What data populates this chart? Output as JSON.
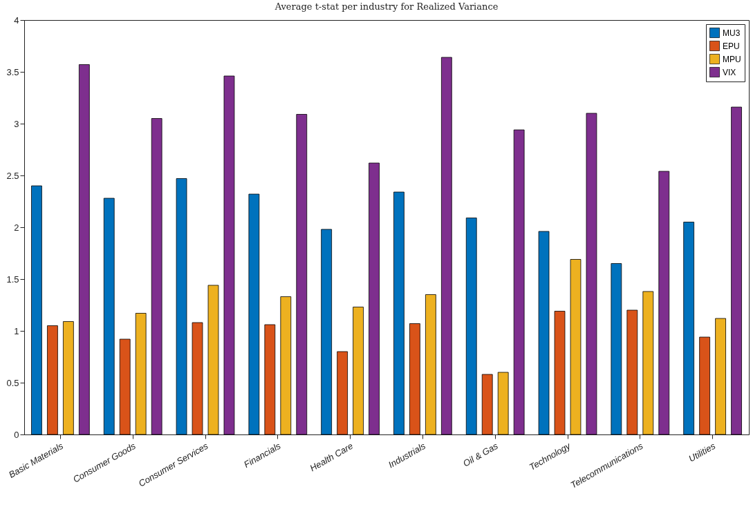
{
  "chart_data": {
    "type": "bar",
    "title": "Average t-stat per industry for Realized Variance",
    "categories": [
      "Basic Materials",
      "Consumer Goods",
      "Consumer Services",
      "Financials",
      "Health Care",
      "Industrials",
      "Oil & Gas",
      "Technology",
      "Telecommunications",
      "Utilities"
    ],
    "series": [
      {
        "name": "MU3",
        "color": "#0072bd",
        "values": [
          2.4,
          2.28,
          2.47,
          2.32,
          1.98,
          2.34,
          2.09,
          1.96,
          1.65,
          2.05
        ]
      },
      {
        "name": "EPU",
        "color": "#d95319",
        "values": [
          1.05,
          0.92,
          1.08,
          1.06,
          0.8,
          1.07,
          0.58,
          1.19,
          1.2,
          0.94
        ]
      },
      {
        "name": "MPU",
        "color": "#edb120",
        "values": [
          1.09,
          1.17,
          1.44,
          1.33,
          1.23,
          1.35,
          0.6,
          1.69,
          1.38,
          1.12
        ]
      },
      {
        "name": "VIX",
        "color": "#7e2f8e",
        "values": [
          3.57,
          3.05,
          3.46,
          3.09,
          2.62,
          3.64,
          2.94,
          3.1,
          2.54,
          3.16
        ]
      }
    ],
    "ylim": [
      0,
      4
    ],
    "yticks": [
      0,
      0.5,
      1,
      1.5,
      2,
      2.5,
      3,
      3.5,
      4
    ],
    "grid": false,
    "legend": "top right"
  }
}
